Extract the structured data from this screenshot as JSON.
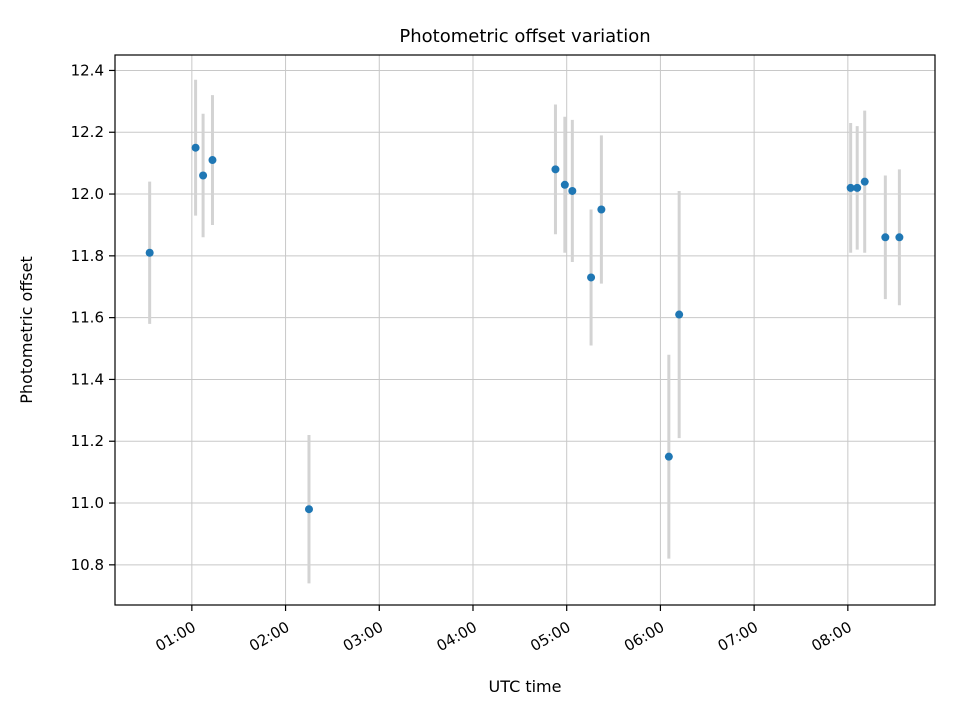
{
  "chart_data": {
    "type": "scatter",
    "title": "Photometric offset variation",
    "xlabel": "UTC time",
    "ylabel": "Photometric offset",
    "grid": true,
    "legend": "none",
    "point_color": "#1f77b4",
    "errorbar_color": "#d3d3d3",
    "grid_color": "#c8c8c8",
    "spine_color": "#000000",
    "xlim": [
      0.18,
      8.93
    ],
    "ylim": [
      10.67,
      12.45
    ],
    "x_ticks": [
      {
        "value": 1,
        "label": "01:00"
      },
      {
        "value": 2,
        "label": "02:00"
      },
      {
        "value": 3,
        "label": "03:00"
      },
      {
        "value": 4,
        "label": "04:00"
      },
      {
        "value": 5,
        "label": "05:00"
      },
      {
        "value": 6,
        "label": "06:00"
      },
      {
        "value": 7,
        "label": "07:00"
      },
      {
        "value": 8,
        "label": "08:00"
      }
    ],
    "y_ticks": [
      {
        "value": 10.8,
        "label": "10.8"
      },
      {
        "value": 11.0,
        "label": "11.0"
      },
      {
        "value": 11.2,
        "label": "11.2"
      },
      {
        "value": 11.4,
        "label": "11.4"
      },
      {
        "value": 11.6,
        "label": "11.6"
      },
      {
        "value": 11.8,
        "label": "11.8"
      },
      {
        "value": 12.0,
        "label": "12.0"
      },
      {
        "value": 12.2,
        "label": "12.2"
      },
      {
        "value": 12.4,
        "label": "12.4"
      }
    ],
    "x_unit": "hours UTC",
    "points": [
      {
        "x": 0.55,
        "y": 11.81,
        "yerr": 0.23
      },
      {
        "x": 1.04,
        "y": 12.15,
        "yerr": 0.22
      },
      {
        "x": 1.12,
        "y": 12.06,
        "yerr": 0.2
      },
      {
        "x": 1.22,
        "y": 12.11,
        "yerr": 0.21
      },
      {
        "x": 2.25,
        "y": 10.98,
        "yerr": 0.24
      },
      {
        "x": 4.88,
        "y": 12.08,
        "yerr": 0.21
      },
      {
        "x": 4.98,
        "y": 12.03,
        "yerr": 0.22
      },
      {
        "x": 5.06,
        "y": 12.01,
        "yerr": 0.23
      },
      {
        "x": 5.26,
        "y": 11.73,
        "yerr": 0.22
      },
      {
        "x": 5.37,
        "y": 11.95,
        "yerr": 0.24
      },
      {
        "x": 6.09,
        "y": 11.15,
        "yerr": 0.33
      },
      {
        "x": 6.2,
        "y": 11.61,
        "yerr": 0.4
      },
      {
        "x": 8.03,
        "y": 12.02,
        "yerr": 0.21
      },
      {
        "x": 8.1,
        "y": 12.02,
        "yerr": 0.2
      },
      {
        "x": 8.18,
        "y": 12.04,
        "yerr": 0.23
      },
      {
        "x": 8.4,
        "y": 11.86,
        "yerr": 0.2
      },
      {
        "x": 8.55,
        "y": 11.86,
        "yerr": 0.22
      }
    ]
  }
}
